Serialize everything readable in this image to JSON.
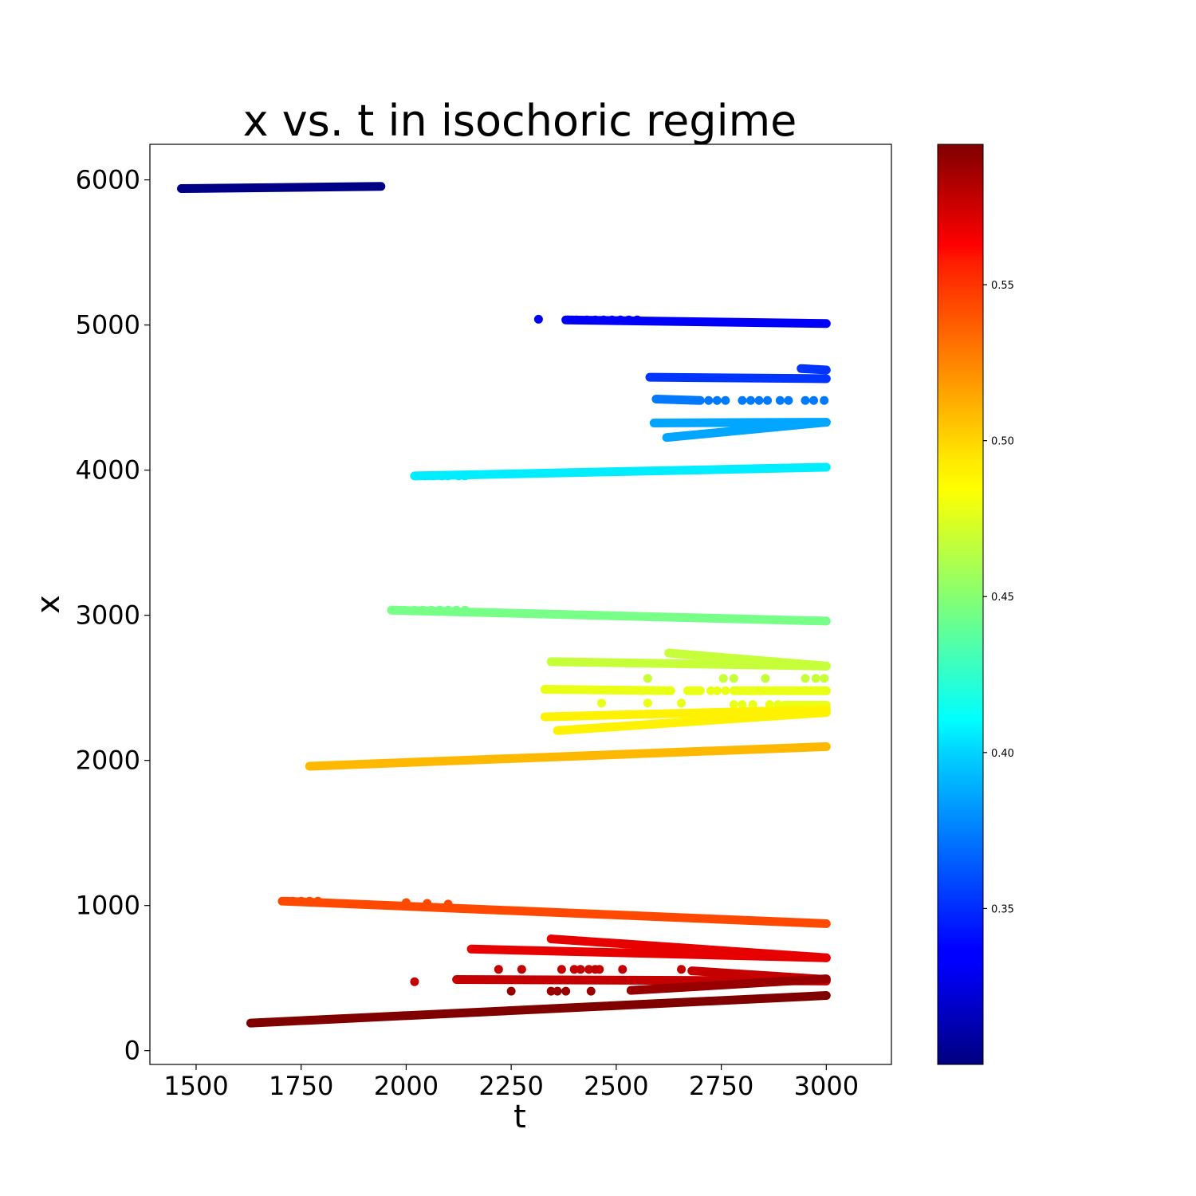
{
  "chart_data": {
    "type": "scatter",
    "title": "x vs. t in isochoric regime",
    "xlabel": "t",
    "ylabel": "x",
    "xlim": [
      1390,
      3155
    ],
    "ylim": [
      -95,
      6245
    ],
    "xticks": [
      1500,
      1750,
      2000,
      2250,
      2500,
      2750,
      3000
    ],
    "yticks": [
      0,
      1000,
      2000,
      3000,
      4000,
      5000,
      6000
    ],
    "grid": false,
    "colormap": "jet",
    "colorbar": {
      "range": [
        0.3,
        0.595
      ],
      "ticks": [
        0.35,
        0.4,
        0.45,
        0.5,
        0.55
      ],
      "tick_labels": [
        "0.35",
        "0.40",
        "0.45",
        "0.50",
        "0.55"
      ]
    },
    "series": [
      {
        "c": 0.302,
        "segments": [
          {
            "t0": 1465,
            "x0": 5940,
            "t1": 1940,
            "x1": 5955
          }
        ]
      },
      {
        "c": 0.335,
        "segments": [
          {
            "t0": 2380,
            "x0": 5035,
            "t1": 3000,
            "x1": 5010
          }
        ],
        "points": [
          [
            2315,
            5040
          ],
          [
            2385,
            5035
          ],
          [
            2405,
            5035
          ],
          [
            2430,
            5035
          ],
          [
            2450,
            5035
          ],
          [
            2470,
            5035
          ],
          [
            2490,
            5035
          ],
          [
            2510,
            5035
          ],
          [
            2530,
            5035
          ],
          [
            2550,
            5035
          ]
        ]
      },
      {
        "c": 0.352,
        "segments": [
          {
            "t0": 2580,
            "x0": 4640,
            "t1": 3000,
            "x1": 4630
          },
          {
            "t0": 2940,
            "x0": 4700,
            "t1": 3000,
            "x1": 4690
          }
        ]
      },
      {
        "c": 0.372,
        "segments": [
          {
            "t0": 2595,
            "x0": 4490,
            "t1": 2700,
            "x1": 4480
          }
        ],
        "points": [
          [
            2720,
            4480
          ],
          [
            2740,
            4480
          ],
          [
            2760,
            4480
          ],
          [
            2800,
            4480
          ],
          [
            2820,
            4480
          ],
          [
            2840,
            4480
          ],
          [
            2860,
            4480
          ],
          [
            2890,
            4480
          ],
          [
            2910,
            4480
          ],
          [
            2950,
            4480
          ],
          [
            2970,
            4480
          ],
          [
            2995,
            4480
          ]
        ]
      },
      {
        "c": 0.385,
        "segments": [
          {
            "t0": 2590,
            "x0": 4325,
            "t1": 3000,
            "x1": 4330
          },
          {
            "t0": 2620,
            "x0": 4225,
            "t1": 3000,
            "x1": 4330
          }
        ]
      },
      {
        "c": 0.405,
        "segments": [
          {
            "t0": 2020,
            "x0": 3960,
            "t1": 3000,
            "x1": 4020
          }
        ],
        "points": [
          [
            2025,
            3960
          ],
          [
            2045,
            3960
          ],
          [
            2065,
            3960
          ],
          [
            2085,
            3960
          ],
          [
            2100,
            3960
          ],
          [
            2125,
            3960
          ],
          [
            2140,
            3960
          ]
        ]
      },
      {
        "c": 0.445,
        "segments": [
          {
            "t0": 1965,
            "x0": 3035,
            "t1": 3000,
            "x1": 2960
          }
        ],
        "points": [
          [
            1975,
            3035
          ],
          [
            1995,
            3035
          ],
          [
            2020,
            3035
          ],
          [
            2040,
            3035
          ],
          [
            2060,
            3035
          ],
          [
            2080,
            3035
          ],
          [
            2100,
            3035
          ],
          [
            2120,
            3035
          ],
          [
            2140,
            3035
          ]
        ]
      },
      {
        "c": 0.468,
        "segments": [
          {
            "t0": 2345,
            "x0": 2680,
            "t1": 3000,
            "x1": 2650
          },
          {
            "t0": 2625,
            "x0": 2740,
            "t1": 3000,
            "x1": 2650
          }
        ],
        "points": [
          [
            2575,
            2565
          ],
          [
            2755,
            2565
          ],
          [
            2780,
            2565
          ],
          [
            2855,
            2565
          ],
          [
            2950,
            2565
          ],
          [
            2975,
            2565
          ],
          [
            2995,
            2565
          ]
        ]
      },
      {
        "c": 0.478,
        "segments": [
          {
            "t0": 2330,
            "x0": 2490,
            "t1": 2630,
            "x1": 2480
          },
          {
            "t0": 2670,
            "x0": 2480,
            "t1": 2700,
            "x1": 2480
          },
          {
            "t0": 2780,
            "x0": 2480,
            "t1": 3000,
            "x1": 2480
          },
          {
            "t0": 2900,
            "x0": 2380,
            "t1": 3000,
            "x1": 2380
          }
        ],
        "points": [
          [
            2725,
            2480
          ],
          [
            2740,
            2480
          ],
          [
            2760,
            2480
          ],
          [
            2465,
            2395
          ],
          [
            2575,
            2395
          ],
          [
            2655,
            2395
          ],
          [
            2780,
            2385
          ],
          [
            2800,
            2385
          ],
          [
            2825,
            2385
          ],
          [
            2865,
            2385
          ],
          [
            2885,
            2385
          ]
        ]
      },
      {
        "c": 0.488,
        "segments": [
          {
            "t0": 2330,
            "x0": 2300,
            "t1": 3000,
            "x1": 2350
          },
          {
            "t0": 2360,
            "x0": 2205,
            "t1": 3000,
            "x1": 2330
          }
        ]
      },
      {
        "c": 0.505,
        "segments": [
          {
            "t0": 1770,
            "x0": 1960,
            "t1": 3000,
            "x1": 2095
          }
        ]
      },
      {
        "c": 0.537,
        "segments": [
          {
            "t0": 1710,
            "x0": 1030,
            "t1": 3000,
            "x1": 875
          }
        ],
        "points": [
          [
            1705,
            1030
          ],
          [
            1730,
            1030
          ],
          [
            1750,
            1030
          ],
          [
            1770,
            1030
          ],
          [
            1790,
            1030
          ],
          [
            2000,
            1020
          ],
          [
            2050,
            1015
          ],
          [
            2100,
            1010
          ]
        ]
      },
      {
        "c": 0.565,
        "segments": [
          {
            "t0": 2155,
            "x0": 700,
            "t1": 3000,
            "x1": 640
          },
          {
            "t0": 2345,
            "x0": 770,
            "t1": 3000,
            "x1": 640
          }
        ]
      },
      {
        "c": 0.575,
        "segments": [
          {
            "t0": 2120,
            "x0": 490,
            "t1": 3000,
            "x1": 480
          },
          {
            "t0": 2680,
            "x0": 550,
            "t1": 3000,
            "x1": 490
          }
        ],
        "points": [
          [
            2020,
            475
          ],
          [
            2220,
            560
          ],
          [
            2275,
            560
          ],
          [
            2370,
            560
          ],
          [
            2400,
            560
          ],
          [
            2415,
            560
          ],
          [
            2435,
            560
          ],
          [
            2450,
            560
          ],
          [
            2460,
            560
          ],
          [
            2515,
            560
          ],
          [
            2655,
            560
          ]
        ]
      },
      {
        "c": 0.588,
        "segments": [
          {
            "t0": 2535,
            "x0": 415,
            "t1": 3000,
            "x1": 495
          }
        ],
        "points": [
          [
            2250,
            410
          ],
          [
            2345,
            410
          ],
          [
            2360,
            410
          ],
          [
            2380,
            410
          ],
          [
            2440,
            410
          ]
        ]
      },
      {
        "c": 0.595,
        "segments": [
          {
            "t0": 1630,
            "x0": 190,
            "t1": 3000,
            "x1": 380
          }
        ]
      }
    ]
  }
}
